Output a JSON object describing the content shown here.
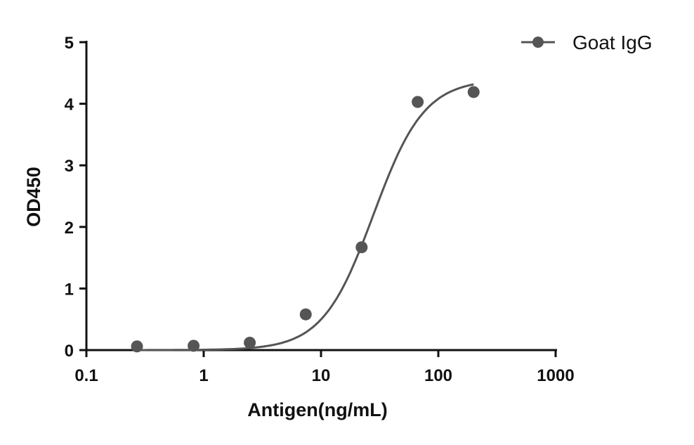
{
  "chart_data": {
    "type": "scatter",
    "xlabel": "Antigen(ng/mL)",
    "ylabel": "OD450",
    "xscale": "log",
    "xlim": [
      0.1,
      1000
    ],
    "ylim": [
      0,
      5
    ],
    "xticks": [
      "0.1",
      "1",
      "10",
      "100",
      "1000"
    ],
    "yticks": [
      "0",
      "1",
      "2",
      "3",
      "4",
      "5"
    ],
    "grid": false,
    "legend_position": "top-right",
    "series": [
      {
        "name": "Goat IgG",
        "color": "#555555",
        "x": [
          0.27,
          0.82,
          2.47,
          7.41,
          22.2,
          66.7,
          200
        ],
        "y": [
          0.06,
          0.07,
          0.12,
          0.58,
          1.67,
          4.03,
          4.19
        ],
        "fit": {
          "model": "4PL",
          "bottom": 0,
          "top": 4.4,
          "ec50": 28,
          "hill": 2.0
        }
      }
    ]
  }
}
